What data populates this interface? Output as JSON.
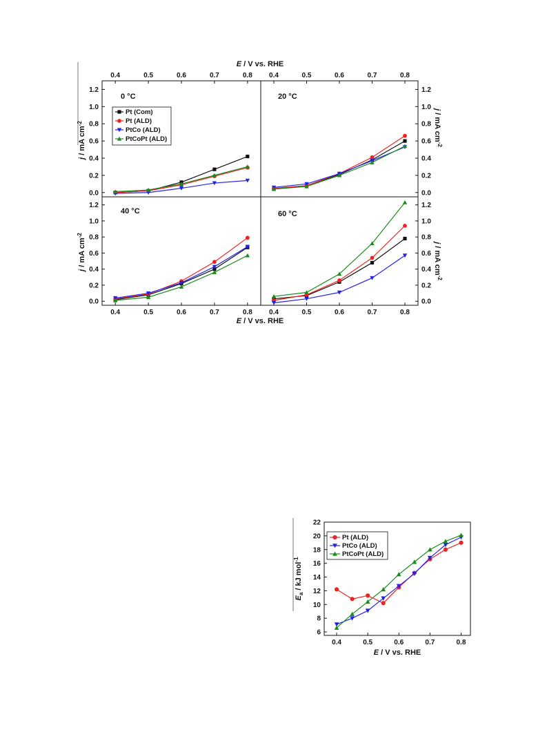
{
  "colors": {
    "Pt (Com)": "#111111",
    "Pt (ALD)": "#ee2222",
    "PtCo (ALD)": "#2222ee",
    "PtCoPt (ALD)": "#1a8a1a"
  },
  "markers": {
    "Pt (Com)": "square",
    "Pt (ALD)": "circle",
    "PtCo (ALD)": "triangle-down",
    "PtCoPt (ALD)": "triangle-up"
  },
  "figure1": {
    "top_xlabel_italic": "E",
    "top_xlabel_rest": " / V vs. RHE",
    "bottom_xlabel_italic": "E",
    "bottom_xlabel_rest": " / V vs. RHE",
    "ylabel_italic": "j",
    "ylabel_rest": " / mA cm",
    "ylabel_sup": "-2",
    "x_ticks": [
      "0.4",
      "0.5",
      "0.6",
      "0.7",
      "0.8"
    ],
    "y_ticks": [
      "0.0",
      "0.2",
      "0.4",
      "0.6",
      "0.8",
      "1.0",
      "1.2"
    ],
    "legend": [
      "Pt (Com)",
      "Pt (ALD)",
      "PtCo (ALD)",
      "PtCoPt (ALD)"
    ]
  },
  "figure2": {
    "xlabel_italic": "E",
    "xlabel_rest": " / V vs. RHE",
    "ylabel_italic": "E",
    "ylabel_sub": "a",
    "ylabel_rest": " / kJ mol",
    "ylabel_sup": "-1",
    "x_ticks": [
      "0.4",
      "0.5",
      "0.6",
      "0.7",
      "0.8"
    ],
    "y_ticks": [
      "6",
      "8",
      "10",
      "12",
      "14",
      "16",
      "18",
      "20",
      "22"
    ],
    "legend": [
      "Pt (ALD)",
      "PtCo (ALD)",
      "PtCoPt (ALD)"
    ]
  },
  "chart_data": [
    {
      "type": "line",
      "panel_label": "0 °C",
      "xlim": [
        0.36,
        0.84
      ],
      "ylim": [
        -0.05,
        1.3
      ],
      "x": [
        0.4,
        0.5,
        0.6,
        0.7,
        0.8
      ],
      "series": [
        {
          "name": "Pt (Com)",
          "values": [
            0.0,
            0.02,
            0.12,
            0.27,
            0.42
          ]
        },
        {
          "name": "Pt (ALD)",
          "values": [
            0.0,
            0.02,
            0.09,
            0.19,
            0.29
          ]
        },
        {
          "name": "PtCo (ALD)",
          "values": [
            -0.01,
            0.0,
            0.05,
            0.11,
            0.14
          ]
        },
        {
          "name": "PtCoPt (ALD)",
          "values": [
            0.01,
            0.03,
            0.1,
            0.2,
            0.3
          ]
        }
      ]
    },
    {
      "type": "line",
      "panel_label": "20 °C",
      "xlim": [
        0.36,
        0.84
      ],
      "ylim": [
        -0.05,
        1.3
      ],
      "x": [
        0.4,
        0.5,
        0.6,
        0.7,
        0.8
      ],
      "series": [
        {
          "name": "Pt (Com)",
          "values": [
            0.04,
            0.08,
            0.21,
            0.38,
            0.6
          ]
        },
        {
          "name": "Pt (ALD)",
          "values": [
            0.05,
            0.08,
            0.22,
            0.41,
            0.66
          ]
        },
        {
          "name": "PtCo (ALD)",
          "values": [
            0.06,
            0.1,
            0.22,
            0.37,
            0.53
          ]
        },
        {
          "name": "PtCoPt (ALD)",
          "values": [
            0.04,
            0.07,
            0.2,
            0.35,
            0.54
          ]
        }
      ]
    },
    {
      "type": "line",
      "panel_label": "40 °C",
      "xlim": [
        0.36,
        0.84
      ],
      "ylim": [
        -0.05,
        1.3
      ],
      "x": [
        0.4,
        0.5,
        0.6,
        0.7,
        0.8
      ],
      "series": [
        {
          "name": "Pt (Com)",
          "values": [
            0.02,
            0.08,
            0.22,
            0.4,
            0.67
          ]
        },
        {
          "name": "Pt (ALD)",
          "values": [
            0.03,
            0.09,
            0.25,
            0.49,
            0.79
          ]
        },
        {
          "name": "PtCo (ALD)",
          "values": [
            0.04,
            0.1,
            0.23,
            0.43,
            0.68
          ]
        },
        {
          "name": "PtCoPt (ALD)",
          "values": [
            0.01,
            0.05,
            0.18,
            0.36,
            0.57
          ]
        }
      ]
    },
    {
      "type": "line",
      "panel_label": "60 °C",
      "xlim": [
        0.36,
        0.84
      ],
      "ylim": [
        -0.05,
        1.3
      ],
      "x": [
        0.4,
        0.5,
        0.6,
        0.7,
        0.8
      ],
      "series": [
        {
          "name": "Pt (Com)",
          "values": [
            0.03,
            0.07,
            0.24,
            0.48,
            0.78
          ]
        },
        {
          "name": "Pt (ALD)",
          "values": [
            0.01,
            0.08,
            0.26,
            0.54,
            0.94
          ]
        },
        {
          "name": "PtCo (ALD)",
          "values": [
            -0.02,
            0.03,
            0.11,
            0.29,
            0.57
          ]
        },
        {
          "name": "PtCoPt (ALD)",
          "values": [
            0.06,
            0.11,
            0.34,
            0.72,
            1.23
          ]
        }
      ]
    },
    {
      "type": "line",
      "xlim": [
        0.36,
        0.83
      ],
      "ylim": [
        5.5,
        22
      ],
      "series": [
        {
          "name": "Pt (ALD)",
          "x": [
            0.4,
            0.45,
            0.5,
            0.55,
            0.6,
            0.65,
            0.7,
            0.75,
            0.8
          ],
          "values": [
            12.2,
            10.8,
            11.3,
            10.2,
            12.5,
            14.6,
            16.6,
            18.0,
            19.0
          ]
        },
        {
          "name": "PtCo (ALD)",
          "x": [
            0.4,
            0.45,
            0.5,
            0.55,
            0.6,
            0.65,
            0.7,
            0.75,
            0.8
          ],
          "values": [
            7.1,
            8.0,
            9.1,
            10.9,
            12.7,
            14.5,
            16.8,
            18.7,
            19.8
          ]
        },
        {
          "name": "PtCoPt (ALD)",
          "x": [
            0.4,
            0.45,
            0.5,
            0.55,
            0.6,
            0.65,
            0.7,
            0.75,
            0.8
          ],
          "values": [
            6.6,
            8.6,
            10.4,
            12.2,
            14.4,
            16.2,
            18.0,
            19.2,
            20.1
          ]
        }
      ]
    }
  ]
}
